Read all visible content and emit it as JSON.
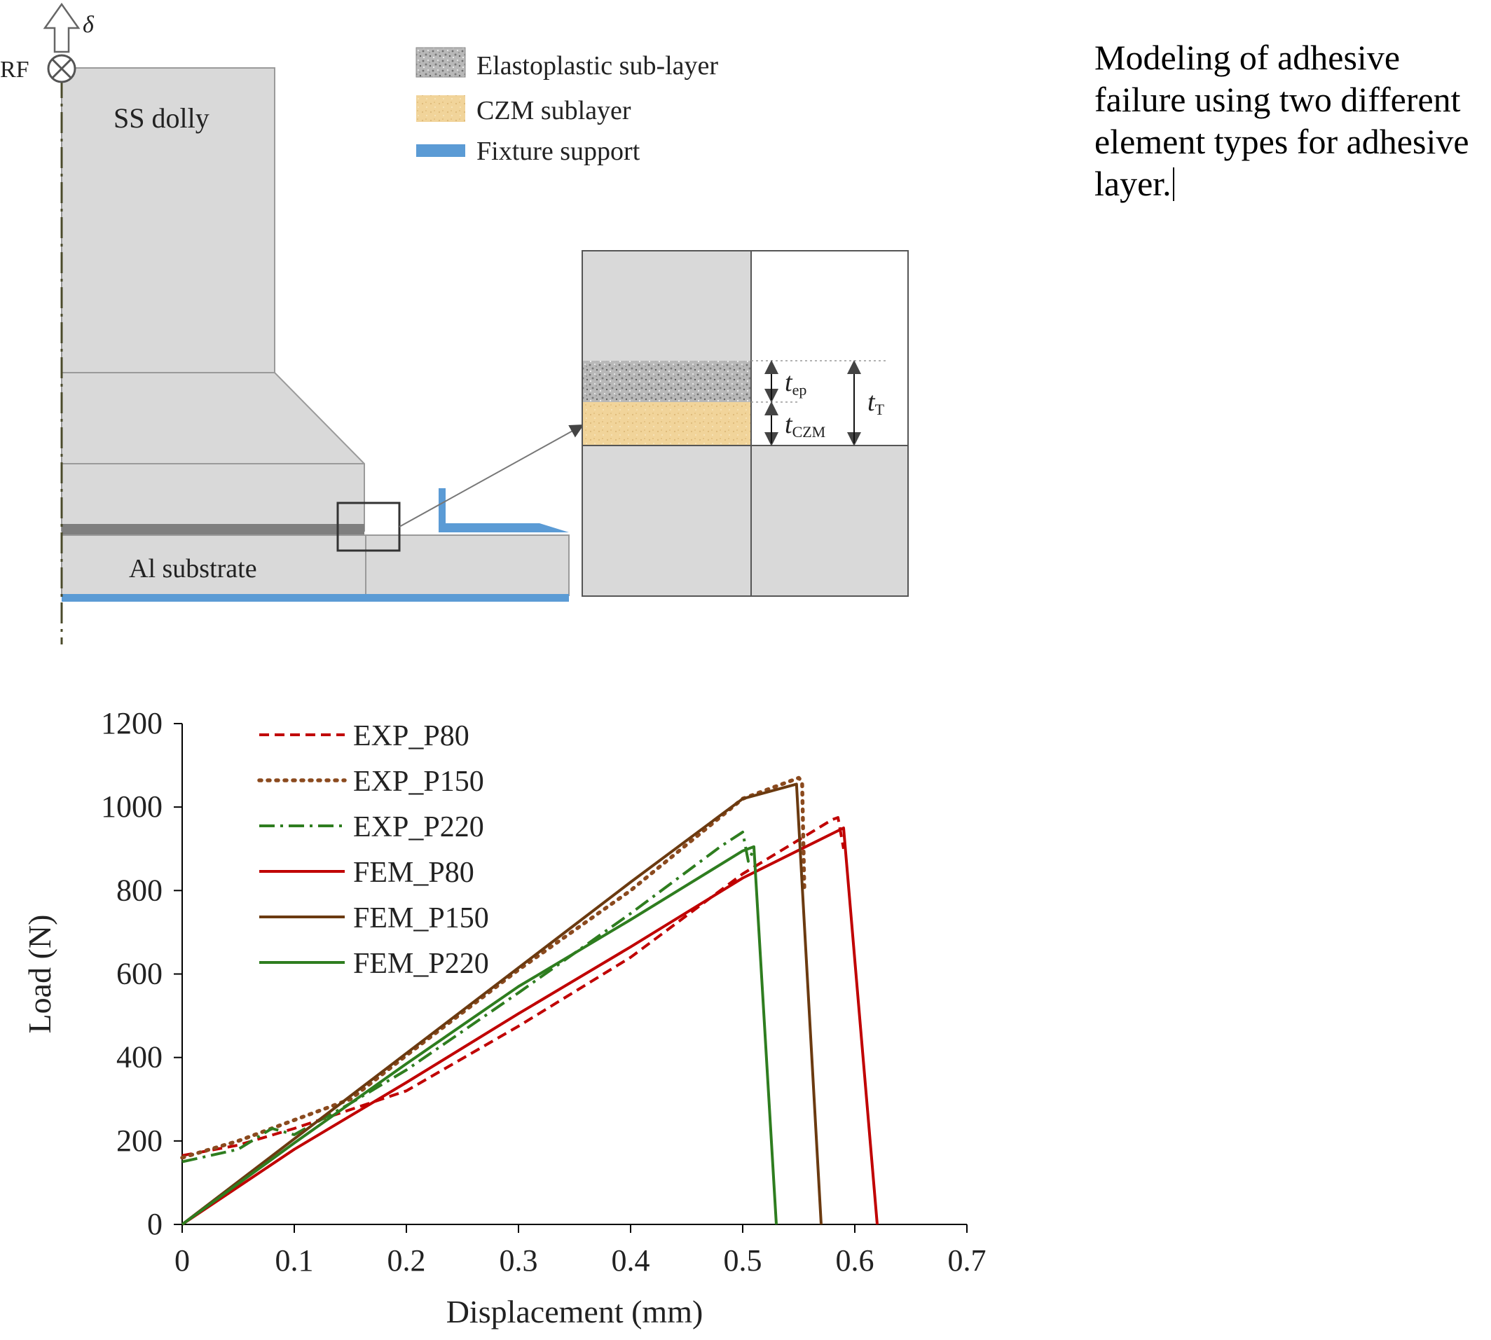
{
  "diagram": {
    "top_arrow_label": "δ",
    "rf_label": "RF",
    "dolly_label": "SS dolly",
    "substrate_label": "Al substrate",
    "legend": [
      {
        "label": "Elastoplastic sub-layer",
        "swatch": "speckle-gray"
      },
      {
        "label": "CZM sublayer",
        "swatch": "#f2d59c"
      },
      {
        "label": "Fixture support",
        "swatch": "#5b9bd5"
      }
    ],
    "inset": {
      "t_ep_label": "t",
      "t_ep_sub": "ep",
      "t_czm_label": "t",
      "t_czm_sub": "CZM",
      "t_total_label": "t",
      "t_total_sub": "T"
    }
  },
  "note": {
    "text": "Modeling of adhesive failure using two different element types for adhesive layer."
  },
  "chart_data": {
    "type": "line",
    "xlabel": "Displacement (mm)",
    "ylabel": "Load (N)",
    "xlim": [
      0,
      0.7
    ],
    "ylim": [
      0,
      1200
    ],
    "xticks": [
      "0",
      "0.1",
      "0.2",
      "0.3",
      "0.4",
      "0.5",
      "0.6",
      "0.7"
    ],
    "yticks": [
      "0",
      "200",
      "400",
      "600",
      "800",
      "1000",
      "1200"
    ],
    "grid": false,
    "legend_position": "top-left",
    "series": [
      {
        "name": "EXP_P80",
        "color": "#c00000",
        "style": "dashed",
        "points": [
          [
            0,
            165
          ],
          [
            0.05,
            190
          ],
          [
            0.1,
            230
          ],
          [
            0.2,
            320
          ],
          [
            0.3,
            475
          ],
          [
            0.4,
            640
          ],
          [
            0.5,
            840
          ],
          [
            0.58,
            970
          ],
          [
            0.585,
            975
          ],
          [
            0.59,
            900
          ]
        ]
      },
      {
        "name": "EXP_P150",
        "color": "#8b4a1e",
        "style": "dotted",
        "points": [
          [
            0,
            160
          ],
          [
            0.05,
            200
          ],
          [
            0.1,
            250
          ],
          [
            0.15,
            300
          ],
          [
            0.2,
            405
          ],
          [
            0.3,
            610
          ],
          [
            0.4,
            800
          ],
          [
            0.5,
            1020
          ],
          [
            0.55,
            1070
          ],
          [
            0.553,
            1060
          ],
          [
            0.555,
            800
          ]
        ]
      },
      {
        "name": "EXP_P220",
        "color": "#2e7d1f",
        "style": "dashdot",
        "points": [
          [
            0,
            150
          ],
          [
            0.05,
            180
          ],
          [
            0.08,
            230
          ],
          [
            0.1,
            215
          ],
          [
            0.15,
            290
          ],
          [
            0.2,
            370
          ],
          [
            0.3,
            555
          ],
          [
            0.4,
            745
          ],
          [
            0.48,
            905
          ],
          [
            0.5,
            940
          ],
          [
            0.505,
            870
          ],
          [
            0.51,
            900
          ]
        ]
      },
      {
        "name": "FEM_P80",
        "color": "#c00000",
        "style": "solid",
        "points": [
          [
            0,
            0
          ],
          [
            0.1,
            180
          ],
          [
            0.2,
            340
          ],
          [
            0.3,
            505
          ],
          [
            0.4,
            665
          ],
          [
            0.5,
            830
          ],
          [
            0.59,
            950
          ],
          [
            0.62,
            0
          ]
        ]
      },
      {
        "name": "FEM_P150",
        "color": "#6b3a10",
        "style": "solid",
        "points": [
          [
            0,
            0
          ],
          [
            0.1,
            205
          ],
          [
            0.2,
            410
          ],
          [
            0.3,
            615
          ],
          [
            0.4,
            820
          ],
          [
            0.5,
            1020
          ],
          [
            0.548,
            1055
          ],
          [
            0.57,
            0
          ]
        ]
      },
      {
        "name": "FEM_P220",
        "color": "#2e7d1f",
        "style": "solid",
        "points": [
          [
            0,
            0
          ],
          [
            0.1,
            195
          ],
          [
            0.2,
            385
          ],
          [
            0.3,
            570
          ],
          [
            0.4,
            730
          ],
          [
            0.5,
            895
          ],
          [
            0.51,
            905
          ],
          [
            0.53,
            0
          ]
        ]
      }
    ]
  }
}
